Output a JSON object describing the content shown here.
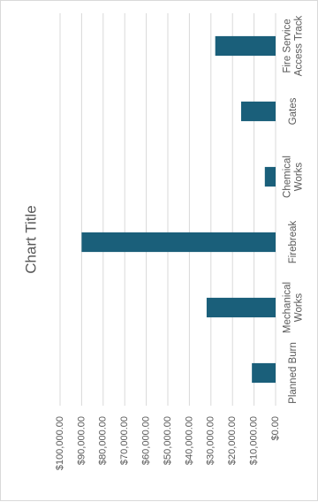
{
  "chart_data": {
    "type": "bar",
    "orientation": "rotated-90",
    "title": "Chart Title",
    "categories": [
      "Fire Service Access Track",
      "Gates",
      "Chemical Works",
      "Firebreak",
      "Mechanical Works",
      "Planned Burn"
    ],
    "category_labels": [
      [
        "Fire Service",
        "Access Track"
      ],
      [
        "Gates"
      ],
      [
        "Chemical",
        "Works"
      ],
      [
        "Firebreak"
      ],
      [
        "Mechanical",
        "Works"
      ],
      [
        "Planned Burn"
      ]
    ],
    "values": [
      28000,
      16000,
      5000,
      90000,
      32000,
      11000
    ],
    "ylim": [
      0,
      100000
    ],
    "ticks": [
      0,
      10000,
      20000,
      30000,
      40000,
      50000,
      60000,
      70000,
      80000,
      90000,
      100000
    ],
    "tick_labels": [
      "$0.00",
      "$10,000.00",
      "$20,000.00",
      "$30,000.00",
      "$40,000.00",
      "$50,000.00",
      "$60,000.00",
      "$70,000.00",
      "$80,000.00",
      "$90,000.00",
      "$100,000.00"
    ],
    "bar_color": "#1a5f7a",
    "grid_color": "#d9d9d9",
    "grid": true,
    "legend": "none"
  }
}
